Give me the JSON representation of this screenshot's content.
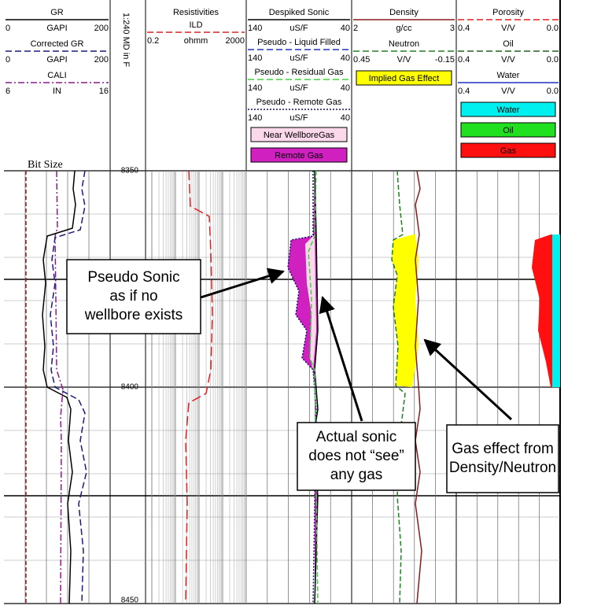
{
  "tracks": [
    {
      "curves": [
        {
          "name": "GR",
          "left": "0",
          "unit": "GAPI",
          "right": "200",
          "color": "#000000",
          "dash": "solid"
        },
        {
          "name": "Corrected GR",
          "left": "0",
          "unit": "GAPI",
          "right": "200",
          "color": "#1a1a80",
          "dash": "dashed"
        },
        {
          "name": "CALI",
          "left": "6",
          "unit": "IN",
          "right": "16",
          "color": "#8b1a8b",
          "dash": "dashdot"
        }
      ]
    },
    {
      "title": "1:240 MD in F"
    },
    {
      "title": "Resistivities",
      "curves": [
        {
          "name": "ILD",
          "left": "0.2",
          "unit": "ohmm",
          "right": "2000",
          "color": "#e02020",
          "dash": "dashed"
        }
      ]
    },
    {
      "curves": [
        {
          "name": "Despiked Sonic",
          "left": "140",
          "unit": "uS/F",
          "right": "40",
          "color": "#000000",
          "dash": "solid"
        },
        {
          "name": "Pseudo - Liquid Filled",
          "left": "140",
          "unit": "uS/F",
          "right": "40",
          "color": "#2030c0",
          "dash": "dashed"
        },
        {
          "name": "Pseudo - Residual Gas",
          "left": "140",
          "unit": "uS/F",
          "right": "40",
          "color": "#40d040",
          "dash": "dashed"
        },
        {
          "name": "Pseudo - Remote Gas",
          "left": "140",
          "unit": "uS/F",
          "right": "40",
          "color": "#101070",
          "dash": "dotted"
        }
      ],
      "boxes": [
        {
          "label": "Near WellboreGas",
          "color": "#fbd8ea"
        },
        {
          "label": "Remote Gas",
          "color": "#d020c0"
        }
      ]
    },
    {
      "curves": [
        {
          "name": "Density",
          "left": "2",
          "unit": "g/cc",
          "right": "3",
          "color": "#8b1a1a",
          "dash": "solid"
        },
        {
          "name": "Neutron",
          "left": "0.45",
          "unit": "V/V",
          "right": "-0.15",
          "color": "#208020",
          "dash": "dashed"
        }
      ],
      "boxes": [
        {
          "label": "Implied Gas Effect",
          "color": "#ffff00"
        }
      ]
    },
    {
      "curves": [
        {
          "name": "Porosity",
          "left": "0.4",
          "unit": "V/V",
          "right": "0.0",
          "color": "#e02020",
          "dash": "dashed"
        },
        {
          "name": "Oil",
          "left": "0.4",
          "unit": "V/V",
          "right": "0.0",
          "color": "#206020",
          "dash": "dashed"
        },
        {
          "name": "Water",
          "left": "0.4",
          "unit": "V/V",
          "right": "0.0",
          "color": "#2030c0",
          "dash": "solid"
        }
      ],
      "boxes": [
        {
          "label": "Water",
          "color": "#00f0f0"
        },
        {
          "label": "Oil",
          "color": "#20e020"
        },
        {
          "label": "Gas",
          "color": "#ff1010"
        }
      ]
    }
  ],
  "bit_size": "Bit Size",
  "depths": [
    "8350",
    "8400",
    "8450"
  ],
  "callouts": [
    {
      "lines": [
        "Pseudo Sonic",
        "as if no",
        "wellbore exists"
      ]
    },
    {
      "lines": [
        "Actual sonic",
        "does not “see”",
        "any gas"
      ]
    },
    {
      "lines": [
        "Gas effect from",
        "Density/Neutron"
      ]
    }
  ]
}
